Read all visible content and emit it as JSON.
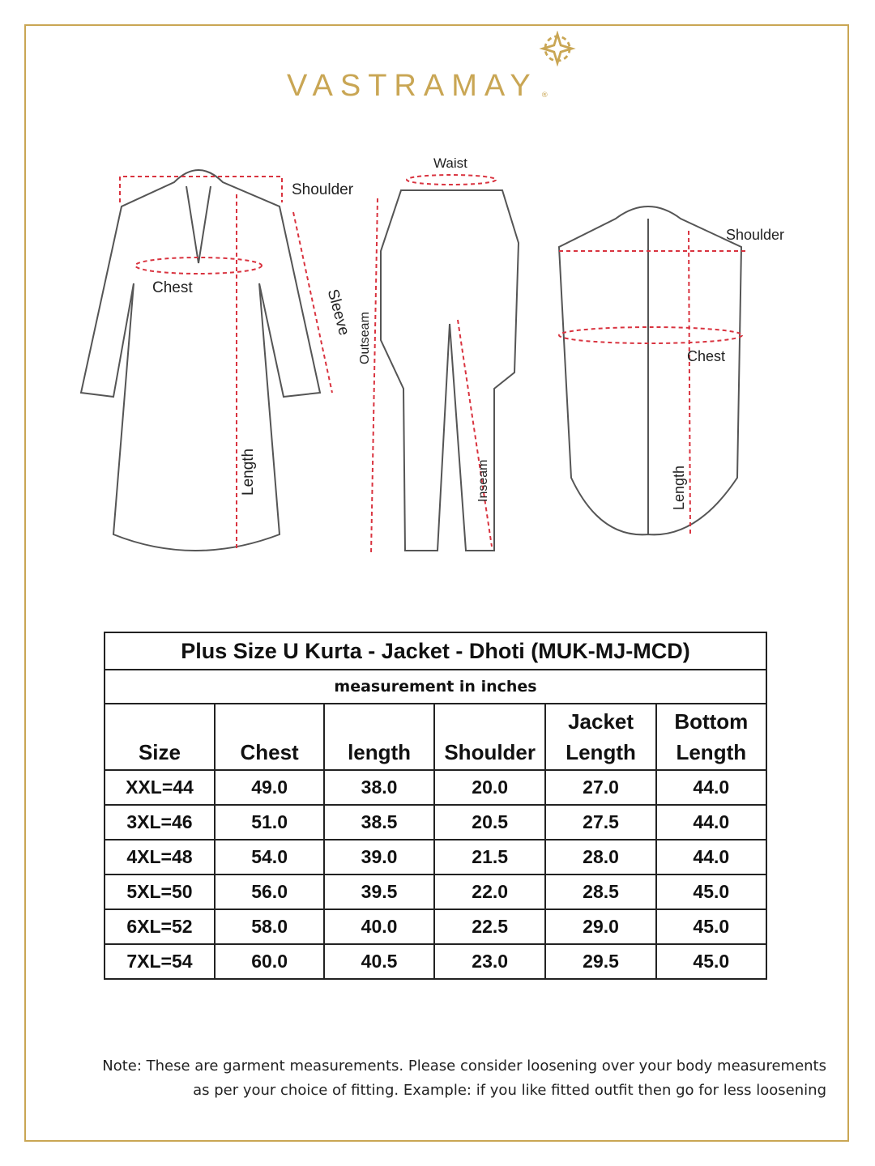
{
  "brand": {
    "name": "VASTRAMAY",
    "registered": "®",
    "color": "#c9a654"
  },
  "diagram": {
    "kurta": {
      "shoulder": "Shoulder",
      "chest": "Chest",
      "sleeve": "Sleeve",
      "length": "Length"
    },
    "dhoti": {
      "waist": "Waist",
      "outseam": "Outseam",
      "inseam": "Inseam"
    },
    "jacket": {
      "shoulder": "Shoulder",
      "chest": "Chest",
      "length": "Length"
    },
    "measure_line_color": "#d9333f"
  },
  "table": {
    "title": "Plus Size U Kurta - Jacket - Dhoti (MUK-MJ-MCD)",
    "subtitle": "measurement in inches",
    "headers": [
      [
        "",
        "Size"
      ],
      [
        "",
        "Chest"
      ],
      [
        "",
        "length"
      ],
      [
        "",
        "Shoulder"
      ],
      [
        "Jacket",
        "Length"
      ],
      [
        "Bottom",
        "Length"
      ]
    ],
    "rows": [
      [
        "XXL=44",
        "49.0",
        "38.0",
        "20.0",
        "27.0",
        "44.0"
      ],
      [
        "3XL=46",
        "51.0",
        "38.5",
        "20.5",
        "27.5",
        "44.0"
      ],
      [
        "4XL=48",
        "54.0",
        "39.0",
        "21.5",
        "28.0",
        "44.0"
      ],
      [
        "5XL=50",
        "56.0",
        "39.5",
        "22.0",
        "28.5",
        "45.0"
      ],
      [
        "6XL=52",
        "58.0",
        "40.0",
        "22.5",
        "29.0",
        "45.0"
      ],
      [
        "7XL=54",
        "60.0",
        "40.5",
        "23.0",
        "29.5",
        "45.0"
      ]
    ]
  },
  "note": {
    "line1": "Note: These are garment measurements. Please consider loosening over your body measurements",
    "line2": "as per your choice of fitting. Example: if you like fitted outfit then go for less loosening"
  }
}
